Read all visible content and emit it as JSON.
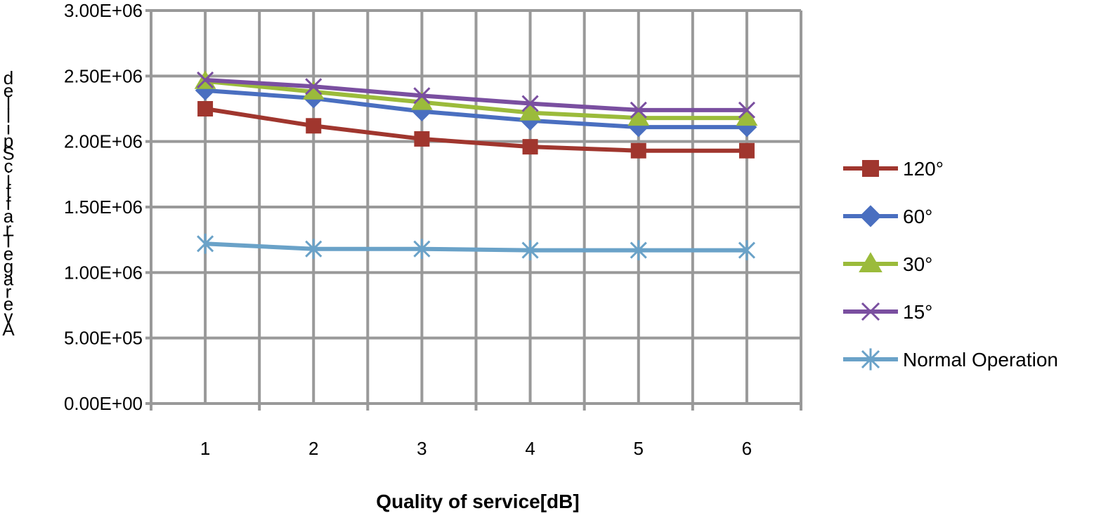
{
  "chart_data": {
    "type": "line",
    "xlabel": "Quality of service[dB]",
    "ylabel": "Average Traffic Spilled",
    "categories": [
      "1",
      "2",
      "3",
      "4",
      "5",
      "6"
    ],
    "ylim": [
      0,
      3000000
    ],
    "yticks": [
      0,
      500000,
      1000000,
      1500000,
      2000000,
      2500000,
      3000000
    ],
    "ytick_labels": [
      "0.00E+00",
      "5.00E+05",
      "1.00E+06",
      "1.50E+06",
      "2.00E+06",
      "2.50E+06",
      "3.00E+06"
    ],
    "grid": true,
    "legend_position": "right",
    "series": [
      {
        "name": "120°",
        "color": "#A0362E",
        "marker": "square",
        "values": [
          2250000,
          2120000,
          2020000,
          1960000,
          1930000,
          1930000
        ]
      },
      {
        "name": "60°",
        "color": "#4A6FC0",
        "marker": "diamond",
        "values": [
          2390000,
          2330000,
          2230000,
          2160000,
          2110000,
          2110000
        ]
      },
      {
        "name": "30°",
        "color": "#9BBB3B",
        "marker": "triangle",
        "values": [
          2460000,
          2380000,
          2300000,
          2220000,
          2180000,
          2180000
        ]
      },
      {
        "name": "15°",
        "color": "#7A4FA0",
        "marker": "x",
        "values": [
          2470000,
          2420000,
          2350000,
          2290000,
          2240000,
          2240000
        ]
      },
      {
        "name": "Normal Operation",
        "color": "#6AA2C8",
        "marker": "star",
        "values": [
          1220000,
          1180000,
          1180000,
          1170000,
          1170000,
          1170000
        ]
      }
    ]
  }
}
